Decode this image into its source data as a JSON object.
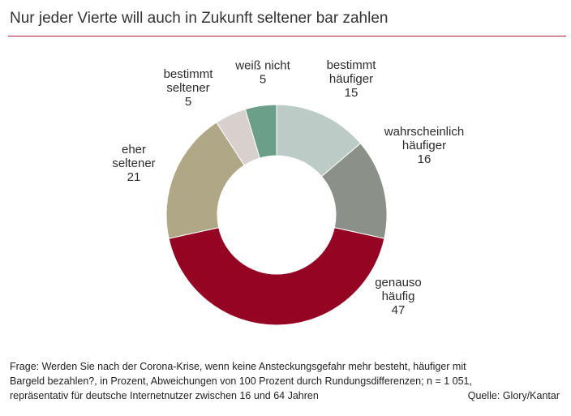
{
  "title": "Nur jeder Vierte will auch in Zukunft seltener bar zahlen",
  "colors": {
    "accent_rule": "#b5203a"
  },
  "chart_data": {
    "type": "pie",
    "style": "donut",
    "start": "top, clockwise",
    "slices": [
      {
        "label_lines": [
          "bestimmt",
          "häufiger"
        ],
        "value": 15,
        "color": "#bccbc6"
      },
      {
        "label_lines": [
          "wahrscheinlich",
          "häufiger"
        ],
        "value": 16,
        "color": "#8b9088"
      },
      {
        "label_lines": [
          "genauso",
          "häufig"
        ],
        "value": 47,
        "color": "#950422"
      },
      {
        "label_lines": [
          "eher",
          "seltener"
        ],
        "value": 21,
        "color": "#b0a786"
      },
      {
        "label_lines": [
          "bestimmt",
          "seltener"
        ],
        "value": 5,
        "color": "#d8d0cd"
      },
      {
        "label_lines": [
          "weiß nicht"
        ],
        "value": 5,
        "color": "#6c9f8a"
      }
    ]
  },
  "footnote": {
    "line1": "Frage: Werden Sie nach der Corona-Krise, wenn keine Ansteckungsgefahr mehr besteht, häufiger mit",
    "line2": "Bargeld bezahlen?, in Prozent, Abweichungen von 100 Prozent durch Rundungsdifferenzen; n = 1 051,",
    "line3": "repräsentativ für deutsche Internetnutzer zwischen 16 und 64 Jahren",
    "source": "Quelle: Glory/Kantar"
  }
}
